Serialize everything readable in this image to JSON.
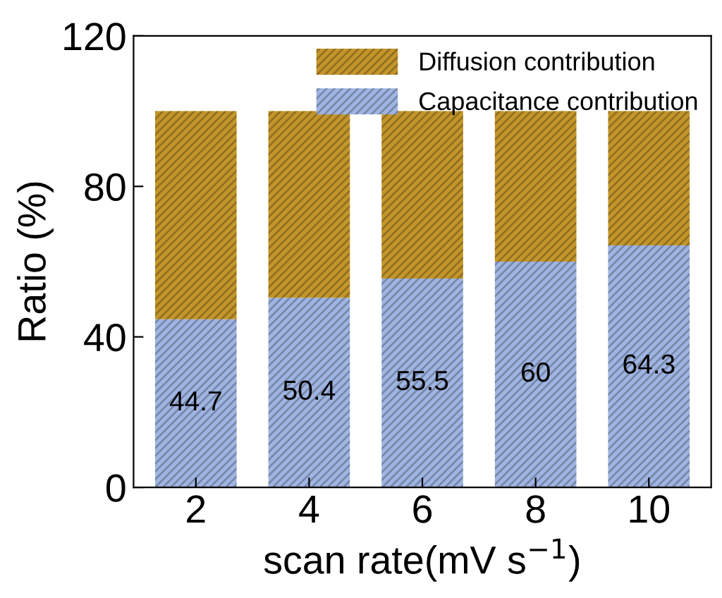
{
  "chart_data": {
    "type": "bar",
    "stacked": true,
    "xlabel": "scan rate(mV s$^{−1}$)",
    "ylabel": "Ratio (%)",
    "categories": [
      "2",
      "4",
      "6",
      "8",
      "10"
    ],
    "series": [
      {
        "name": "Capacitance contribution",
        "color": "#9fb5e3",
        "values": [
          44.7,
          50.4,
          55.5,
          60,
          64.3
        ],
        "value_labels": [
          "44.7",
          "50.4",
          "55.5",
          "60",
          "64.3"
        ]
      },
      {
        "name": "Diffusion contribution",
        "color": "#c4962a",
        "values": [
          55.3,
          49.6,
          44.5,
          40,
          35.7
        ]
      }
    ],
    "ylim": [
      0,
      120
    ],
    "yticks": [
      0,
      40,
      80,
      120
    ],
    "legend": "top right",
    "grid": false
  }
}
